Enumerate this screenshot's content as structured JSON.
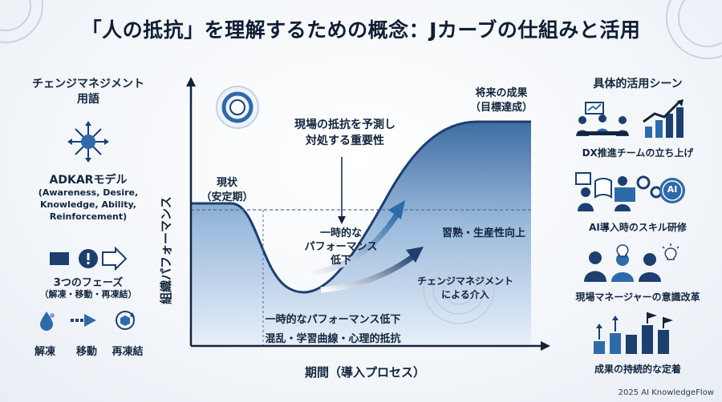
{
  "title": "「人の抵抗」を理解するための概念：Jカーブの仕組みと活用",
  "left": {
    "heading_line1": "チェンジマネジメント",
    "heading_line2": "用語",
    "adkar_title": "ADKARモデル",
    "adkar_line1": "(Awareness, Desire,",
    "adkar_line2": "Knowledge, Ability,",
    "adkar_line3": "Reinforcement)",
    "phases_title": "3つのフェーズ",
    "phases_sub": "（解凍・移動・再凍結）",
    "phase_1": "解凍",
    "phase_2": "移動",
    "phase_3": "再凍結"
  },
  "chart": {
    "y_axis_label": "組織パフォーマンス",
    "x_axis_label": "期間（導入プロセス）",
    "current_state_line1": "現状",
    "current_state_line2": "（安定期）",
    "predict_line1": "現場の抵抗を予測し",
    "predict_line2": "対処する重要性",
    "dip_line1": "一時的な",
    "dip_line2": "パフォーマンス",
    "dip_line3": "低下",
    "future_line1": "将来の成果",
    "future_line2": "（目標達成）",
    "mastery": "習熟・生産性向上",
    "cm_line1": "チェンジマネジメント",
    "cm_line2": "による介入",
    "bottom_line1": "一時的なパフォーマンス低下",
    "bottom_line2": "混乱・学習曲線・心理的抵抗"
  },
  "right": {
    "heading": "具体的活用シーン",
    "scene_1": "DX推進チームの立ち上げ",
    "scene_2": "AI導入時のスキル研修",
    "scene_3": "現場マネージャーの意識改革",
    "scene_4": "成果の持続的な定着",
    "ai_badge": "AI"
  },
  "footer": "2025 AI KnowledgeFlow",
  "colors": {
    "navy": "#1d3f6e",
    "blue": "#2f6aa8",
    "light_blue": "#cfe0f1",
    "text": "#13243c"
  }
}
